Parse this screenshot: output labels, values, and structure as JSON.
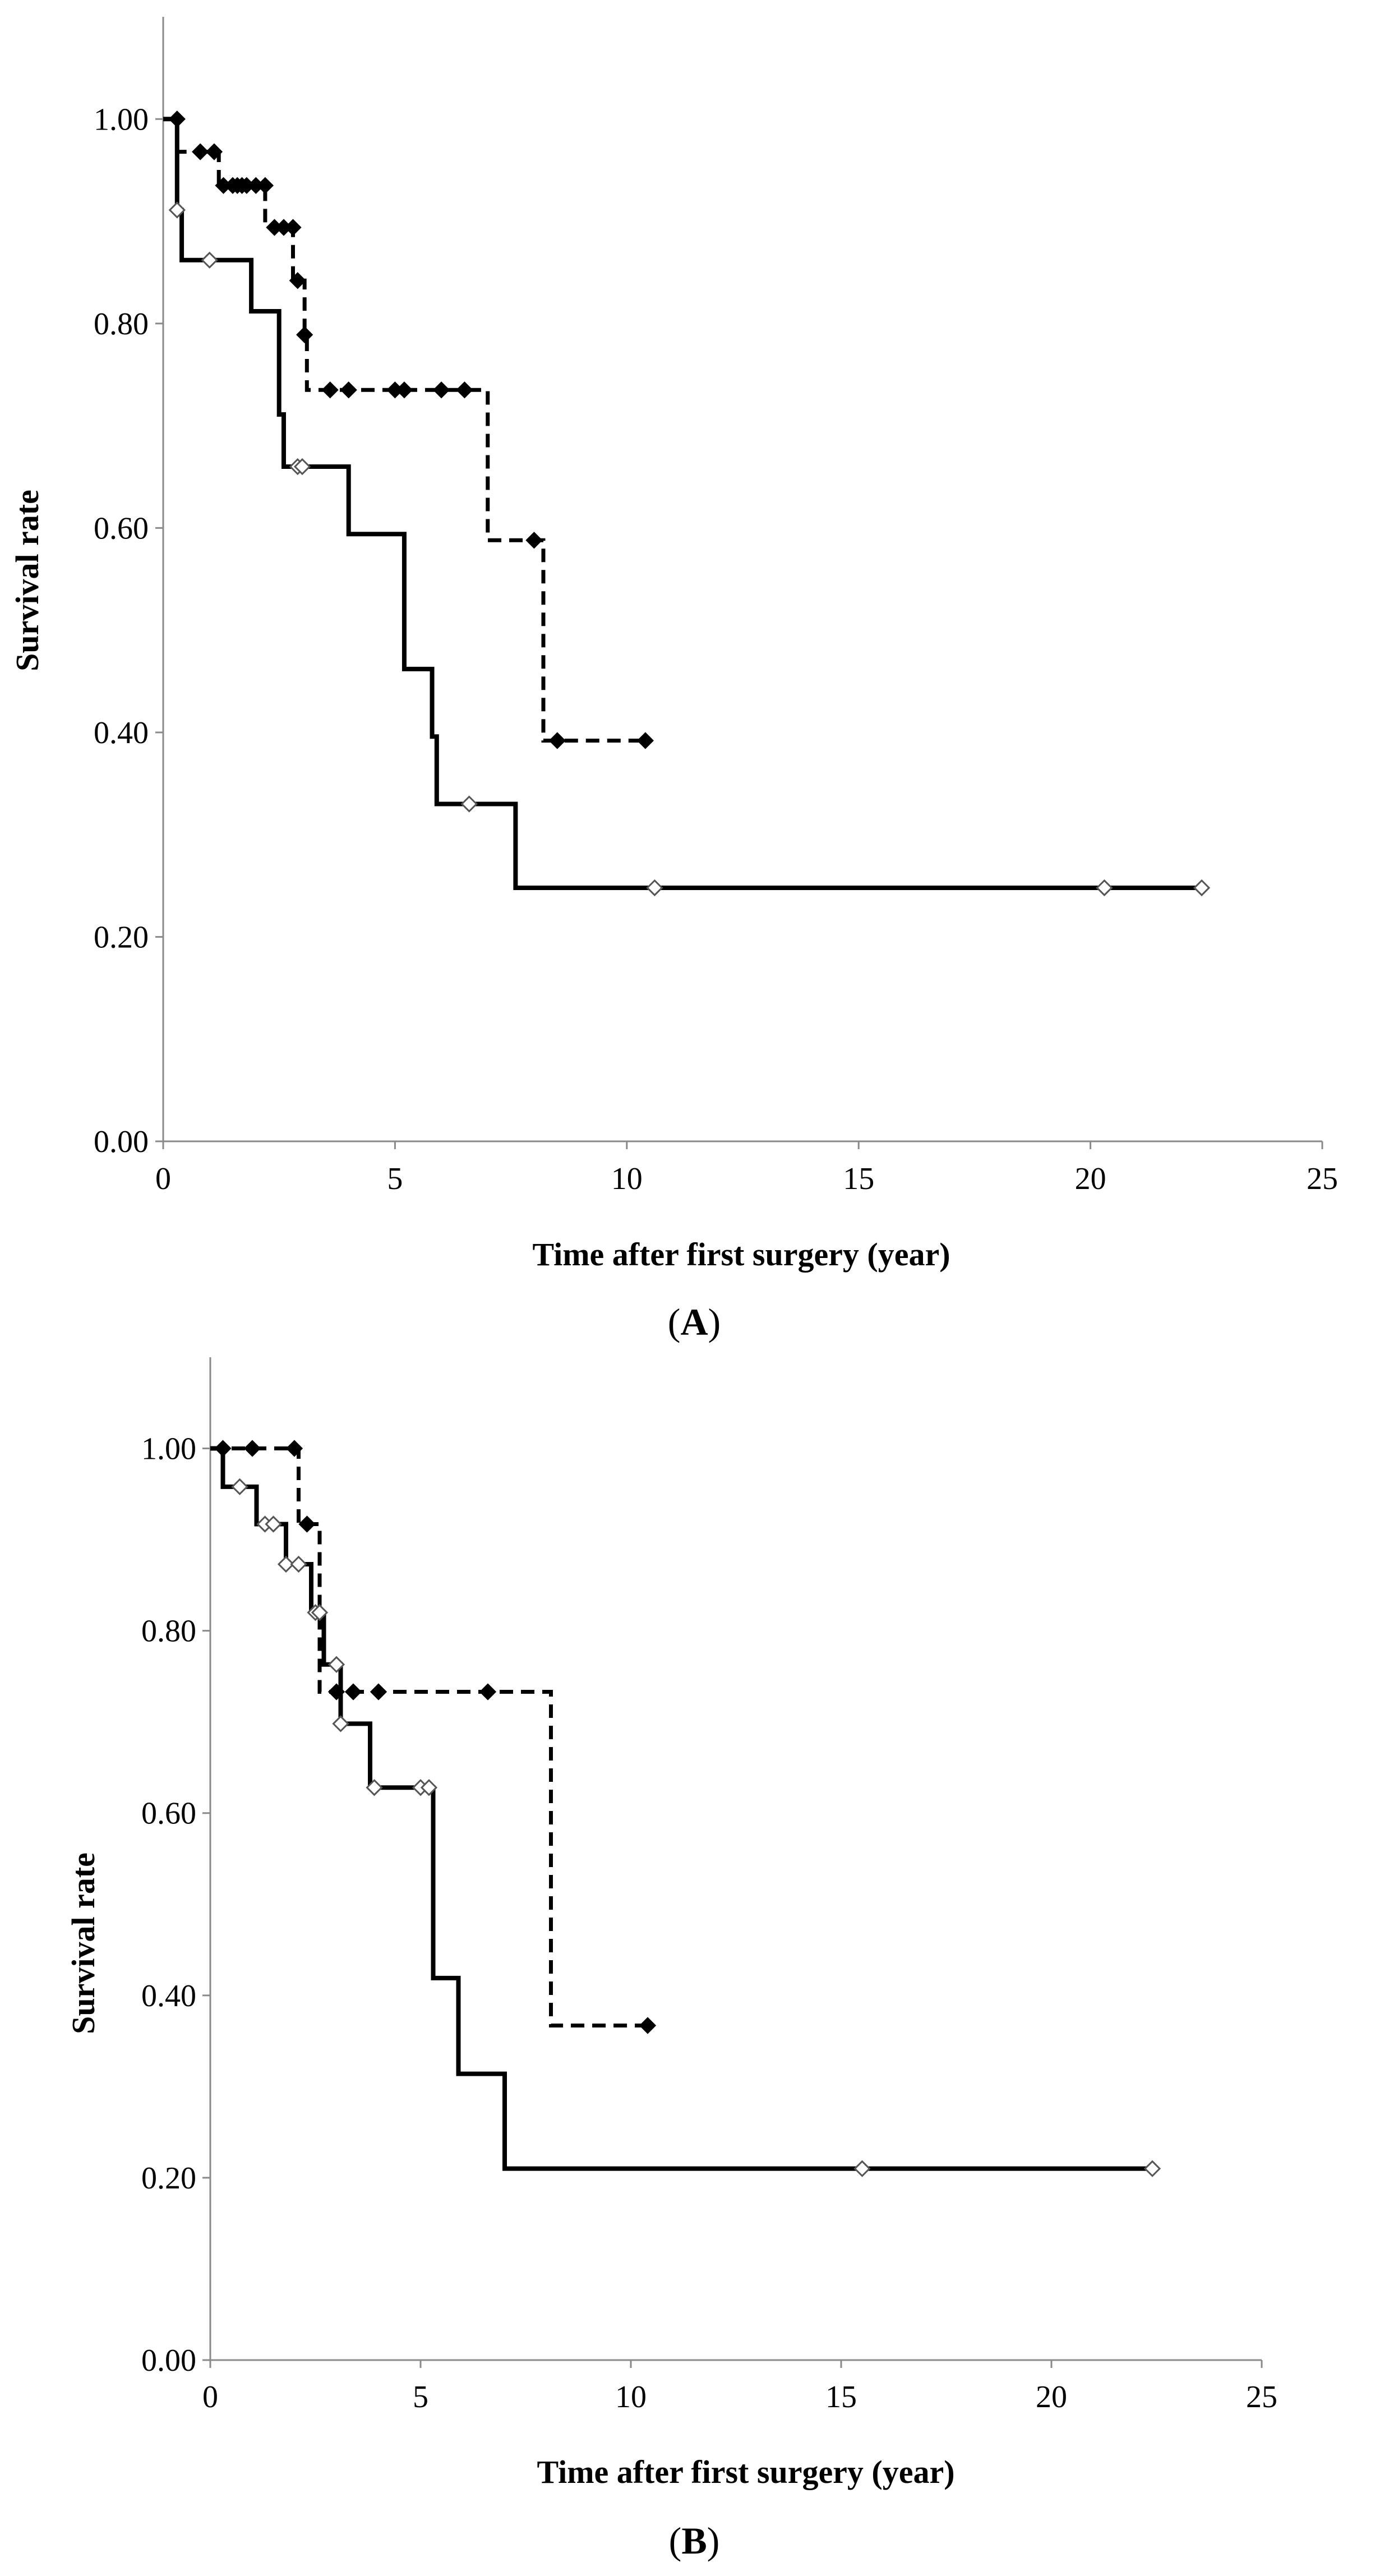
{
  "chart_data": [
    {
      "panel": "A",
      "type": "line",
      "step": true,
      "title": "",
      "xlabel": "Time after first surgery (year)",
      "ylabel": "Survival rate",
      "xlim": [
        0,
        25
      ],
      "ylim": [
        0,
        1.1
      ],
      "xticks": [
        "0",
        "5",
        "10",
        "15",
        "20",
        "25"
      ],
      "yticks": [
        "0.00",
        "0.20",
        "0.40",
        "0.60",
        "0.80",
        "1.00"
      ],
      "grid": false,
      "legend": "none",
      "series": [
        {
          "name": "dashed",
          "line_style": "dashed",
          "marker": "filled-diamond",
          "color": "#000000",
          "steps": [
            [
              0,
              1.0
            ],
            [
              0.3,
              0.968
            ],
            [
              1.2,
              0.935
            ],
            [
              2.2,
              0.894
            ],
            [
              2.8,
              0.842
            ],
            [
              3.05,
              0.789
            ],
            [
              3.1,
              0.735
            ],
            [
              7.0,
              0.588
            ],
            [
              8.2,
              0.392
            ],
            [
              10.4,
              0.392
            ]
          ],
          "censored": [
            [
              0.3,
              1.0
            ],
            [
              0.8,
              0.968
            ],
            [
              1.1,
              0.968
            ],
            [
              1.3,
              0.935
            ],
            [
              1.5,
              0.935
            ],
            [
              1.6,
              0.935
            ],
            [
              1.7,
              0.935
            ],
            [
              1.8,
              0.935
            ],
            [
              2.0,
              0.935
            ],
            [
              2.2,
              0.935
            ],
            [
              2.4,
              0.894
            ],
            [
              2.6,
              0.894
            ],
            [
              2.8,
              0.894
            ],
            [
              2.9,
              0.842
            ],
            [
              3.05,
              0.789
            ],
            [
              3.6,
              0.735
            ],
            [
              4.0,
              0.735
            ],
            [
              5.0,
              0.735
            ],
            [
              5.2,
              0.735
            ],
            [
              6.0,
              0.735
            ],
            [
              6.5,
              0.735
            ],
            [
              8.0,
              0.588
            ],
            [
              8.5,
              0.392
            ],
            [
              10.4,
              0.392
            ]
          ]
        },
        {
          "name": "solid",
          "line_style": "solid",
          "marker": "open-diamond",
          "color": "#000000",
          "steps": [
            [
              0,
              1.0
            ],
            [
              0.3,
              0.911
            ],
            [
              0.4,
              0.862
            ],
            [
              1.9,
              0.812
            ],
            [
              2.5,
              0.711
            ],
            [
              2.6,
              0.66
            ],
            [
              4.0,
              0.594
            ],
            [
              5.2,
              0.462
            ],
            [
              5.8,
              0.396
            ],
            [
              5.9,
              0.33
            ],
            [
              7.6,
              0.248
            ],
            [
              22.4,
              0.248
            ]
          ],
          "censored": [
            [
              0.3,
              0.911
            ],
            [
              1.0,
              0.862
            ],
            [
              2.9,
              0.66
            ],
            [
              3.0,
              0.66
            ],
            [
              6.6,
              0.33
            ],
            [
              10.6,
              0.248
            ],
            [
              20.3,
              0.248
            ],
            [
              22.4,
              0.248
            ]
          ]
        }
      ]
    },
    {
      "panel": "B",
      "type": "line",
      "step": true,
      "title": "",
      "xlabel": "Time after first surgery (year)",
      "ylabel": "Survival rate",
      "xlim": [
        0,
        25
      ],
      "ylim": [
        0,
        1.1
      ],
      "xticks": [
        "0",
        "5",
        "10",
        "15",
        "20",
        "25"
      ],
      "yticks": [
        "0.00",
        "0.20",
        "0.40",
        "0.60",
        "0.80",
        "1.00"
      ],
      "grid": false,
      "legend": "none",
      "series": [
        {
          "name": "dashed",
          "line_style": "dashed",
          "marker": "filled-diamond",
          "color": "#000000",
          "steps": [
            [
              0,
              1.0
            ],
            [
              2.1,
              0.917
            ],
            [
              2.6,
              0.733
            ],
            [
              8.1,
              0.367
            ],
            [
              10.4,
              0.367
            ]
          ],
          "censored": [
            [
              0.3,
              1.0
            ],
            [
              1.0,
              1.0
            ],
            [
              2.0,
              1.0
            ],
            [
              2.3,
              0.917
            ],
            [
              3.0,
              0.733
            ],
            [
              3.4,
              0.733
            ],
            [
              4.0,
              0.733
            ],
            [
              6.6,
              0.733
            ],
            [
              10.4,
              0.367
            ]
          ]
        },
        {
          "name": "solid",
          "line_style": "solid",
          "marker": "open-diamond",
          "color": "#000000",
          "steps": [
            [
              0,
              1.0
            ],
            [
              0.3,
              0.958
            ],
            [
              1.1,
              0.917
            ],
            [
              1.8,
              0.873
            ],
            [
              2.4,
              0.82
            ],
            [
              2.7,
              0.763
            ],
            [
              3.1,
              0.698
            ],
            [
              3.8,
              0.628
            ],
            [
              5.3,
              0.419
            ],
            [
              5.9,
              0.314
            ],
            [
              7.0,
              0.21
            ],
            [
              22.4,
              0.21
            ]
          ],
          "censored": [
            [
              0.7,
              0.958
            ],
            [
              1.3,
              0.917
            ],
            [
              1.5,
              0.917
            ],
            [
              1.8,
              0.873
            ],
            [
              2.1,
              0.873
            ],
            [
              2.5,
              0.82
            ],
            [
              2.6,
              0.82
            ],
            [
              3.0,
              0.763
            ],
            [
              3.1,
              0.698
            ],
            [
              3.9,
              0.628
            ],
            [
              5.0,
              0.628
            ],
            [
              5.2,
              0.628
            ],
            [
              15.5,
              0.21
            ],
            [
              22.4,
              0.21
            ]
          ]
        }
      ]
    }
  ],
  "labels": {
    "panel_a": "A",
    "panel_b": "B",
    "open_paren": "(",
    "close_paren": ")"
  }
}
